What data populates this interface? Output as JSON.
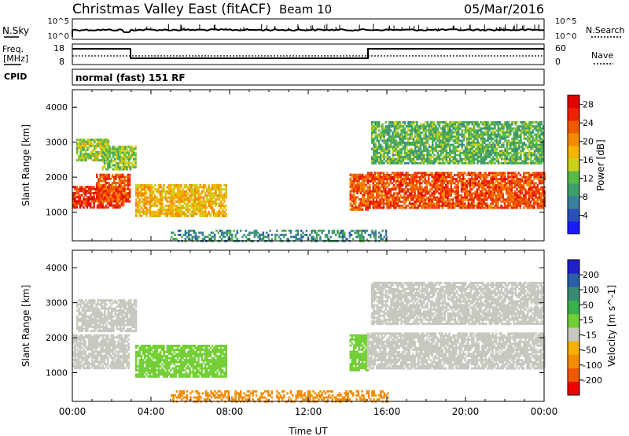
{
  "header": {
    "title": "Christmas Valley East (fitACF)",
    "beam": "Beam 10",
    "date": "05/Mar/2016"
  },
  "panels": {
    "nsky": {
      "label": "N.Sky",
      "right_label": "N.Search",
      "ticks_left": [
        "10^5",
        "10^0"
      ],
      "ticks_right": [
        "10^5",
        "10^0"
      ]
    },
    "freq": {
      "label_top": "Freq.",
      "label_unit": "[MHz]",
      "right_label": "Nave",
      "ticks_left": [
        "18",
        "8"
      ],
      "ticks_right": [
        "60",
        "0"
      ]
    },
    "cpid": {
      "label": "CPID",
      "text": "normal (fast) 151 RF"
    }
  },
  "colors": {
    "power": [
      "#1a1aff",
      "#2a4fb8",
      "#3a7f9c",
      "#3f9d6a",
      "#58b848",
      "#c9d21c",
      "#f4b400",
      "#f58a00",
      "#f05a00",
      "#ee2200",
      "#e00000"
    ],
    "velocity": [
      "#ee0000",
      "#f05800",
      "#f48c00",
      "#f6b000",
      "#c8c8c0",
      "#74cf36",
      "#3cb04a",
      "#3a8a72",
      "#2c5fa8",
      "#2020c8"
    ]
  },
  "chart_data": [
    {
      "type": "heatmap",
      "name": "power",
      "ylabel": "Slant Range [km]",
      "ylim": [
        180,
        4500
      ],
      "yticks": [
        1000,
        2000,
        3000,
        4000
      ],
      "xlim": [
        0,
        24
      ],
      "colorbar_label": "Power [dB]",
      "colorbar_ticks": [
        "4",
        "8",
        "12",
        "16",
        "20",
        "24",
        "28"
      ],
      "colorbar_range": [
        0,
        30
      ],
      "regions": [
        {
          "t0": 0.0,
          "t1": 2.6,
          "r0": 1150,
          "r1": 1750,
          "value": 27
        },
        {
          "t0": 1.2,
          "t1": 2.9,
          "r0": 1300,
          "r1": 2100,
          "value": 25
        },
        {
          "t0": 0.2,
          "t1": 1.8,
          "r0": 2500,
          "r1": 3100,
          "value": 14
        },
        {
          "t0": 1.5,
          "t1": 3.2,
          "r0": 2200,
          "r1": 2900,
          "value": 13
        },
        {
          "t0": 3.2,
          "t1": 7.8,
          "r0": 900,
          "r1": 1800,
          "value": 18
        },
        {
          "t0": 14.1,
          "t1": 15.0,
          "r0": 1100,
          "r1": 2100,
          "value": 24
        },
        {
          "t0": 15.0,
          "t1": 24.0,
          "r0": 1150,
          "r1": 2150,
          "value": 25
        },
        {
          "t0": 15.2,
          "t1": 24.0,
          "r0": 2400,
          "r1": 3600,
          "value": 11
        },
        {
          "t0": 5.0,
          "t1": 16.0,
          "r0": 200,
          "r1": 500,
          "value": 8
        }
      ]
    },
    {
      "type": "heatmap",
      "name": "velocity",
      "xlabel": "Time UT",
      "ylabel": "Slant Range [km]",
      "ylim": [
        180,
        4500
      ],
      "yticks": [
        1000,
        2000,
        3000,
        4000
      ],
      "xlim": [
        0,
        24
      ],
      "xticks": [
        "00:00",
        "04:00",
        "08:00",
        "12:00",
        "16:00",
        "20:00",
        "00:00"
      ],
      "colorbar_label": "Velocity [m s^-1]",
      "colorbar_ticks": [
        "-200",
        "-100",
        "-50",
        "-15",
        "15",
        "50",
        "100",
        "200"
      ],
      "regions": [
        {
          "t0": 0.0,
          "t1": 2.9,
          "r0": 1150,
          "r1": 2100,
          "value": 0
        },
        {
          "t0": 0.2,
          "t1": 3.2,
          "r0": 2200,
          "r1": 3100,
          "value": 0
        },
        {
          "t0": 3.2,
          "t1": 7.8,
          "r0": 900,
          "r1": 1800,
          "value": 30
        },
        {
          "t0": 14.1,
          "t1": 15.0,
          "r0": 1100,
          "r1": 2100,
          "value": 30
        },
        {
          "t0": 15.0,
          "t1": 24.0,
          "r0": 1150,
          "r1": 2150,
          "value": 0
        },
        {
          "t0": 15.2,
          "t1": 24.0,
          "r0": 2400,
          "r1": 3600,
          "value": 0
        },
        {
          "t0": 5.0,
          "t1": 16.0,
          "r0": 200,
          "r1": 500,
          "value": -80
        }
      ]
    }
  ]
}
